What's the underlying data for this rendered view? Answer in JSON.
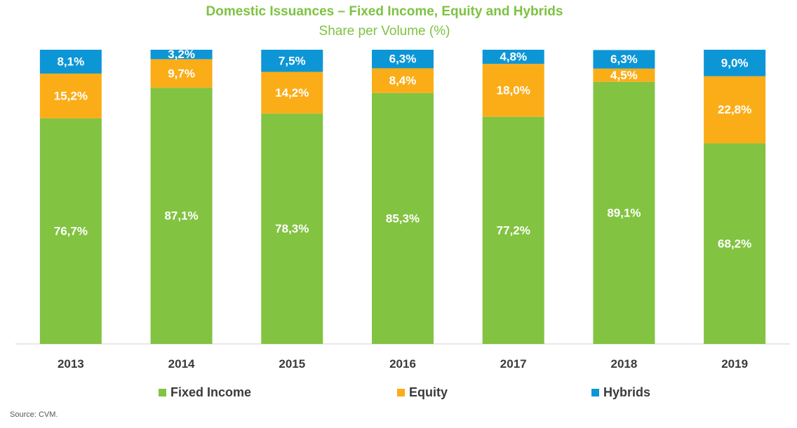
{
  "chart_data": {
    "type": "bar",
    "stacked": true,
    "title": "Domestic Issuances – Fixed Income, Equity and Hybrids",
    "subtitle": "Share per Volume (%)",
    "categories": [
      "2013",
      "2014",
      "2015",
      "2016",
      "2017",
      "2018",
      "2019"
    ],
    "series": [
      {
        "name": "Fixed Income",
        "color": "#82c341",
        "values": [
          76.7,
          87.1,
          78.3,
          85.3,
          77.2,
          89.1,
          68.2
        ],
        "labels": [
          "76,7%",
          "87,1%",
          "78,3%",
          "85,3%",
          "77,2%",
          "89,1%",
          "68,2%"
        ]
      },
      {
        "name": "Equity",
        "color": "#fbad18",
        "values": [
          15.2,
          9.7,
          14.2,
          8.4,
          18.0,
          4.5,
          22.8
        ],
        "labels": [
          "15,2%",
          "9,7%",
          "14,2%",
          "8,4%",
          "18,0%",
          "4,5%",
          "22,8%"
        ]
      },
      {
        "name": "Hybrids",
        "color": "#0d96d6",
        "values": [
          8.1,
          3.2,
          7.5,
          6.3,
          4.8,
          6.3,
          9.0
        ],
        "labels": [
          "8,1%",
          "3,2%",
          "7,5%",
          "6,3%",
          "4,8%",
          "6,3%",
          "9,0%"
        ]
      }
    ],
    "ylim": [
      0,
      100
    ],
    "grid": false,
    "legend_position": "bottom"
  },
  "source": "Source: CVM."
}
